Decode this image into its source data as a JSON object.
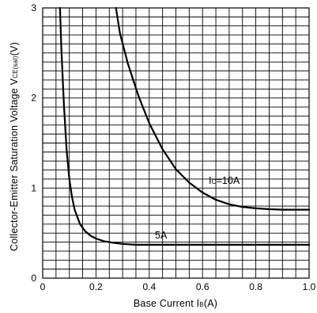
{
  "chart_data": {
    "type": "line",
    "xlabel_main": "Base Current  I",
    "xlabel_sub": "B",
    "xlabel_unit": "(A)",
    "ylabel_main": "Collector-Emitter Saturation Voltage  V",
    "ylabel_sub": "CE(sat)",
    "ylabel_unit": "(V)",
    "xlim": [
      0,
      1.0
    ],
    "ylim": [
      0,
      3
    ],
    "x_ticks": [
      "0",
      "0.2",
      "0.4",
      "0.6",
      "0.8",
      "1.0"
    ],
    "x_tick_values": [
      0,
      0.2,
      0.4,
      0.6,
      0.8,
      1.0
    ],
    "y_ticks": [
      "0",
      "1",
      "2",
      "3"
    ],
    "y_tick_values": [
      0,
      1,
      2,
      3
    ],
    "grid": true,
    "grid_x_step": 0.05,
    "grid_y_step": 0.1,
    "series": [
      {
        "label_main": "I",
        "label_sub": "C",
        "label_tail": "=10A",
        "x": [
          0.275,
          0.29,
          0.32,
          0.36,
          0.4,
          0.45,
          0.5,
          0.55,
          0.6,
          0.65,
          0.7,
          0.75,
          0.8,
          0.85,
          0.9,
          0.95,
          1.0
        ],
        "y": [
          3.0,
          2.72,
          2.38,
          2.02,
          1.72,
          1.43,
          1.21,
          1.06,
          0.95,
          0.87,
          0.82,
          0.79,
          0.775,
          0.765,
          0.76,
          0.76,
          0.76
        ]
      },
      {
        "label_main": "5A",
        "label_sub": "",
        "label_tail": "",
        "x": [
          0.065,
          0.07,
          0.08,
          0.09,
          0.1,
          0.11,
          0.12,
          0.14,
          0.16,
          0.18,
          0.2,
          0.23,
          0.26,
          0.3,
          0.35,
          0.4,
          0.5,
          0.6,
          0.7,
          0.8,
          0.9,
          1.0
        ],
        "y": [
          3.0,
          2.55,
          1.9,
          1.42,
          1.1,
          0.9,
          0.76,
          0.6,
          0.52,
          0.47,
          0.44,
          0.41,
          0.395,
          0.38,
          0.37,
          0.37,
          0.37,
          0.37,
          0.37,
          0.37,
          0.37,
          0.37
        ]
      }
    ]
  }
}
